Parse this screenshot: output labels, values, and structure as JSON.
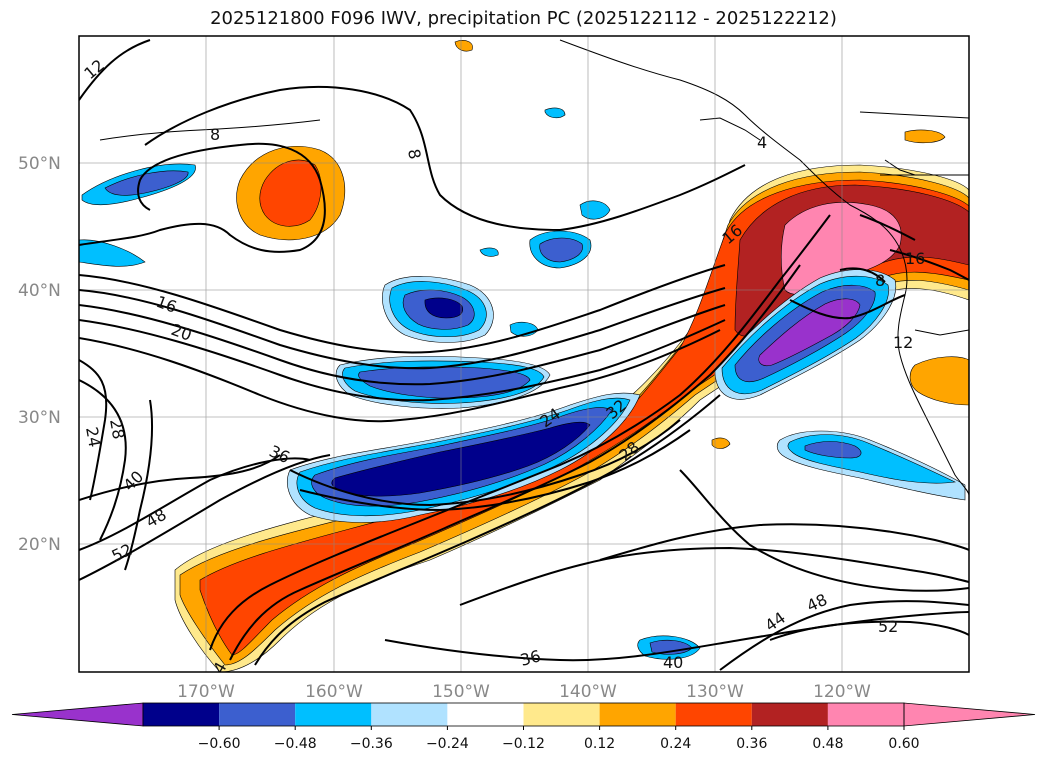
{
  "title": "2025121800 F096 IWV, precipitation PC (2025122112 - 2025122212)",
  "map": {
    "lat_labels": [
      "50°N",
      "40°N",
      "30°N",
      "20°N"
    ],
    "lon_labels": [
      "170°W",
      "160°W",
      "150°W",
      "140°W",
      "130°W",
      "120°W"
    ],
    "contour_labels": [
      "12",
      "8",
      "8",
      "4",
      "16",
      "20",
      "24",
      "28",
      "36",
      "40",
      "48",
      "52",
      "24",
      "32",
      "28",
      "16",
      "16",
      "12",
      "8",
      "36",
      "40",
      "44",
      "48",
      "52",
      "4"
    ]
  },
  "colorbar": {
    "ticks": [
      "−0.60",
      "−0.48",
      "−0.36",
      "−0.24",
      "−0.12",
      "0.12",
      "0.24",
      "0.36",
      "0.48",
      "0.60"
    ],
    "colors": [
      "#9932cc",
      "#00008b",
      "#3c5fcf",
      "#00bfff",
      "#b0e2ff",
      "#ffffff",
      "#ffe98c",
      "#ffa500",
      "#ff4500",
      "#b22222",
      "#ff85b0",
      "#ff85b0"
    ]
  }
}
